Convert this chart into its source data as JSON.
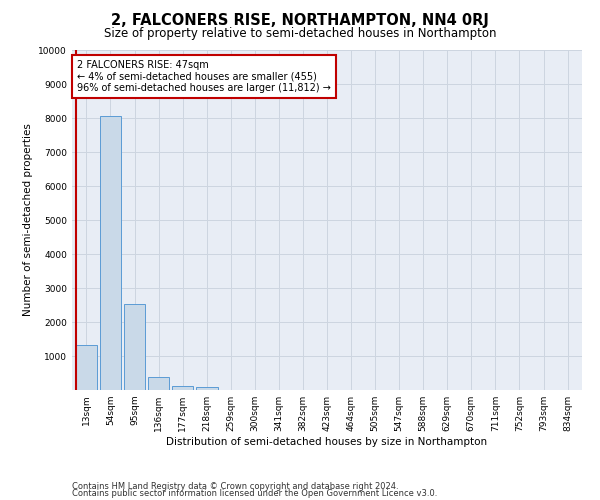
{
  "title": "2, FALCONERS RISE, NORTHAMPTON, NN4 0RJ",
  "subtitle": "Size of property relative to semi-detached houses in Northampton",
  "xlabel": "Distribution of semi-detached houses by size in Northampton",
  "ylabel": "Number of semi-detached properties",
  "bar_labels": [
    "13sqm",
    "54sqm",
    "95sqm",
    "136sqm",
    "177sqm",
    "218sqm",
    "259sqm",
    "300sqm",
    "341sqm",
    "382sqm",
    "423sqm",
    "464sqm",
    "505sqm",
    "547sqm",
    "588sqm",
    "629sqm",
    "670sqm",
    "711sqm",
    "752sqm",
    "793sqm",
    "834sqm"
  ],
  "bar_values": [
    1320,
    8050,
    2520,
    380,
    130,
    90,
    0,
    0,
    0,
    0,
    0,
    0,
    0,
    0,
    0,
    0,
    0,
    0,
    0,
    0,
    0
  ],
  "bar_color": "#c9d9e8",
  "bar_edge_color": "#5b9bd5",
  "highlight_color": "#c00000",
  "annotation_text": "2 FALCONERS RISE: 47sqm\n← 4% of semi-detached houses are smaller (455)\n96% of semi-detached houses are larger (11,812) →",
  "annotation_box_color": "#ffffff",
  "annotation_box_edge": "#c00000",
  "ylim": [
    0,
    10000
  ],
  "yticks": [
    0,
    1000,
    2000,
    3000,
    4000,
    5000,
    6000,
    7000,
    8000,
    9000,
    10000
  ],
  "grid_color": "#cdd5e0",
  "bg_color": "#e8edf5",
  "footer_line1": "Contains HM Land Registry data © Crown copyright and database right 2024.",
  "footer_line2": "Contains public sector information licensed under the Open Government Licence v3.0.",
  "title_fontsize": 10.5,
  "subtitle_fontsize": 8.5,
  "axis_label_fontsize": 7.5,
  "tick_fontsize": 6.5,
  "annotation_fontsize": 7,
  "footer_fontsize": 6
}
